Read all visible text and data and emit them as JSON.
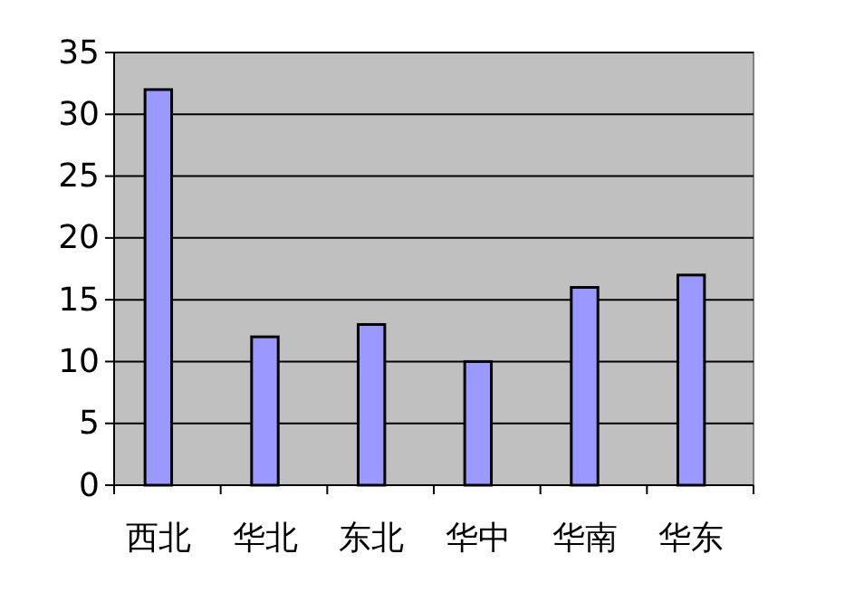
{
  "chart_data": {
    "type": "bar",
    "categories": [
      "西北",
      "华北",
      "东北",
      "华中",
      "华南",
      "华东"
    ],
    "values": [
      32,
      12,
      13,
      10,
      16,
      17
    ],
    "color": "#9999ff",
    "ylim": [
      0,
      35
    ],
    "yticks": [
      0,
      5,
      10,
      15,
      20,
      25,
      30,
      35
    ],
    "grid": "y"
  }
}
